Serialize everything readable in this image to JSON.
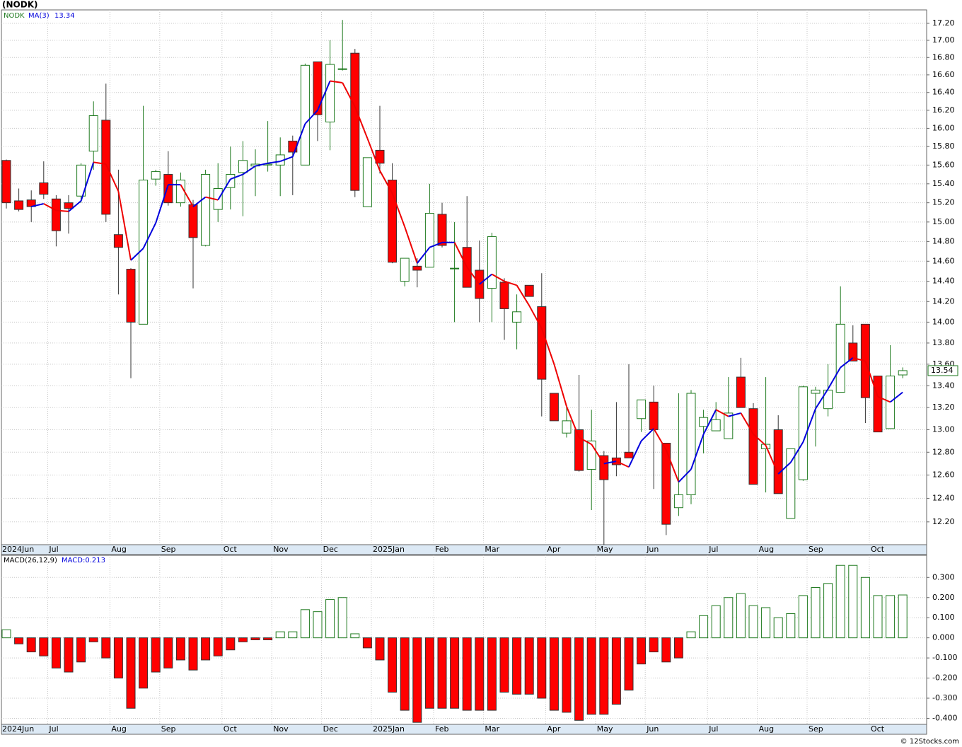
{
  "source": "© 12Stocks.com",
  "chart_data": [
    {
      "type": "candlestick",
      "title": "(NODK)",
      "log_scale": true,
      "grid": true,
      "categories": [
        "2024Jun",
        null,
        null,
        null,
        "Jul",
        null,
        null,
        null,
        null,
        "Aug",
        null,
        null,
        null,
        "Sep",
        null,
        null,
        null,
        null,
        "Oct",
        null,
        null,
        null,
        "Nov",
        null,
        null,
        null,
        "Dec",
        null,
        null,
        null,
        "2025Jan",
        null,
        null,
        null,
        null,
        "Feb",
        null,
        null,
        null,
        "Mar",
        null,
        null,
        null,
        null,
        "Apr",
        null,
        null,
        null,
        "May",
        null,
        null,
        null,
        "Jun",
        null,
        null,
        null,
        null,
        "Jul",
        null,
        null,
        null,
        "Aug",
        null,
        null,
        null,
        "Sep",
        null,
        null,
        null,
        null,
        "Oct",
        null,
        null
      ],
      "series": [
        {
          "name": "NODK",
          "color": "#1f7a1f",
          "down_color": "#ff0000",
          "open": [
            15.65,
            15.22,
            15.23,
            15.41,
            15.24,
            15.2,
            15.27,
            15.75,
            16.09,
            14.87,
            14.52,
            13.98,
            15.45,
            15.5,
            15.2,
            15.18,
            14.76,
            15.13,
            15.36,
            15.52,
            15.59,
            15.6,
            15.6,
            15.86,
            15.6,
            16.75,
            16.07,
            16.67,
            16.85,
            15.16,
            15.76,
            15.44,
            14.4,
            14.55,
            14.54,
            15.08,
            14.53,
            14.74,
            14.51,
            14.33,
            14.39,
            14.0,
            14.36,
            14.15,
            13.33,
            12.97,
            13.0,
            12.65,
            12.77,
            12.75,
            12.8,
            13.1,
            13.25,
            12.88,
            12.32,
            12.43,
            13.03,
            12.99,
            12.92,
            13.48,
            13.19,
            12.83,
            13.0,
            12.23,
            12.56,
            13.33,
            13.19,
            13.34,
            13.8,
            13.98,
            13.49,
            13.01,
            13.5
          ],
          "high": [
            15.66,
            15.35,
            15.33,
            15.64,
            15.28,
            15.28,
            15.62,
            16.3,
            16.5,
            15.55,
            14.53,
            16.25,
            15.55,
            15.75,
            15.52,
            15.23,
            15.55,
            15.62,
            15.8,
            15.86,
            15.77,
            16.08,
            15.9,
            15.92,
            16.73,
            16.75,
            17.0,
            17.24,
            16.9,
            15.68,
            16.25,
            15.62,
            14.63,
            14.63,
            15.4,
            15.2,
            15.0,
            15.27,
            14.81,
            14.89,
            14.43,
            14.27,
            14.36,
            14.48,
            13.33,
            13.2,
            13.5,
            13.18,
            12.81,
            13.25,
            13.6,
            13.27,
            13.4,
            12.88,
            13.33,
            13.36,
            13.18,
            13.25,
            13.48,
            13.66,
            13.24,
            13.48,
            13.13,
            12.83,
            13.4,
            13.39,
            13.6,
            14.35,
            13.97,
            13.98,
            13.49,
            13.78,
            13.57
          ],
          "low": [
            15.14,
            15.11,
            15.0,
            15.24,
            14.75,
            14.88,
            15.2,
            15.55,
            15.0,
            14.27,
            13.47,
            13.98,
            15.38,
            15.17,
            15.16,
            14.33,
            14.75,
            15.0,
            15.13,
            15.06,
            15.27,
            15.53,
            15.27,
            15.28,
            15.6,
            15.86,
            15.76,
            16.65,
            15.26,
            15.16,
            15.51,
            14.58,
            14.35,
            14.34,
            14.54,
            14.74,
            14.0,
            14.34,
            14.0,
            14.0,
            13.83,
            13.74,
            14.25,
            13.12,
            13.08,
            12.93,
            12.63,
            12.3,
            12.01,
            12.59,
            12.75,
            12.98,
            12.48,
            12.09,
            12.25,
            12.35,
            12.79,
            12.99,
            12.92,
            13.2,
            12.52,
            12.45,
            12.44,
            12.23,
            12.55,
            12.85,
            13.12,
            13.34,
            13.63,
            13.06,
            12.98,
            13.01,
            13.47
          ],
          "close": [
            15.2,
            15.13,
            15.16,
            15.29,
            14.91,
            15.14,
            15.6,
            16.14,
            15.08,
            14.74,
            14.0,
            15.44,
            15.53,
            15.2,
            15.44,
            14.84,
            15.5,
            15.35,
            15.5,
            15.65,
            15.61,
            15.61,
            15.71,
            15.74,
            16.71,
            16.15,
            16.72,
            16.67,
            15.33,
            15.68,
            15.62,
            14.59,
            14.63,
            14.51,
            15.09,
            14.76,
            14.53,
            14.34,
            14.23,
            14.85,
            14.13,
            14.1,
            14.25,
            13.46,
            13.08,
            13.08,
            12.64,
            12.9,
            12.56,
            12.69,
            12.75,
            13.27,
            13.0,
            12.18,
            12.43,
            13.33,
            13.11,
            13.09,
            13.15,
            13.2,
            12.52,
            12.87,
            12.44,
            12.83,
            13.39,
            13.36,
            13.36,
            13.98,
            13.63,
            13.29,
            12.98,
            13.49,
            13.54
          ]
        }
      ],
      "ma": {
        "name": "MA(3)",
        "color": "#0000dd",
        "down_color": "#ee0000",
        "values": [
          null,
          null,
          15.16,
          15.19,
          15.12,
          15.11,
          15.22,
          15.63,
          15.61,
          15.32,
          14.61,
          14.73,
          14.99,
          15.39,
          15.39,
          15.16,
          15.26,
          15.23,
          15.45,
          15.5,
          15.59,
          15.62,
          15.64,
          15.69,
          16.05,
          16.2,
          16.53,
          16.51,
          16.24,
          15.89,
          15.54,
          15.3,
          14.95,
          14.58,
          14.74,
          14.79,
          14.79,
          14.54,
          14.37,
          14.47,
          14.4,
          14.36,
          14.16,
          13.94,
          13.6,
          13.21,
          12.93,
          12.87,
          12.7,
          12.72,
          12.67,
          12.9,
          13.01,
          12.82,
          12.54,
          12.65,
          12.96,
          13.18,
          13.12,
          13.15,
          12.96,
          12.86,
          12.61,
          12.71,
          12.89,
          13.19,
          13.37,
          13.57,
          13.66,
          13.63,
          13.3,
          13.25,
          13.34
        ]
      },
      "ylim": [
        12.01,
        17.36
      ],
      "yticks": [
        {
          "value": 12.2,
          "label": "12.20"
        },
        {
          "value": 12.4,
          "label": "12.40"
        },
        {
          "value": 12.6,
          "label": "12.60"
        },
        {
          "value": 12.8,
          "label": "12.80"
        },
        {
          "value": 13.0,
          "label": "13.00"
        },
        {
          "value": 13.2,
          "label": "13.20"
        },
        {
          "value": 13.4,
          "label": "13.40"
        },
        {
          "value": 13.6,
          "label": "13.60"
        },
        {
          "value": 13.8,
          "label": "13.80"
        },
        {
          "value": 14.0,
          "label": "14.00"
        },
        {
          "value": 14.2,
          "label": "14.20"
        },
        {
          "value": 14.4,
          "label": "14.40"
        },
        {
          "value": 14.6,
          "label": "14.60"
        },
        {
          "value": 14.8,
          "label": "14.80"
        },
        {
          "value": 15.0,
          "label": "15.00"
        },
        {
          "value": 15.2,
          "label": "15.20"
        },
        {
          "value": 15.4,
          "label": "15.40"
        },
        {
          "value": 15.6,
          "label": "15.60"
        },
        {
          "value": 15.8,
          "label": "15.80"
        },
        {
          "value": 16.0,
          "label": "16.00"
        },
        {
          "value": 16.2,
          "label": "16.20"
        },
        {
          "value": 16.4,
          "label": "16.40"
        },
        {
          "value": 16.6,
          "label": "16.60"
        },
        {
          "value": 16.8,
          "label": "16.80"
        },
        {
          "value": 17.0,
          "label": "17.00"
        },
        {
          "value": 17.2,
          "label": "17.20"
        }
      ]
    },
    {
      "type": "bar",
      "title": "MACD(26,12,9)",
      "grid": true,
      "categories": [
        "2024Jun",
        null,
        null,
        null,
        "Jul",
        null,
        null,
        null,
        null,
        "Aug",
        null,
        null,
        null,
        "Sep",
        null,
        null,
        null,
        null,
        "Oct",
        null,
        null,
        null,
        "Nov",
        null,
        null,
        null,
        "Dec",
        null,
        null,
        null,
        "2025Jan",
        null,
        null,
        null,
        null,
        "Feb",
        null,
        null,
        null,
        "Mar",
        null,
        null,
        null,
        null,
        "Apr",
        null,
        null,
        null,
        "May",
        null,
        null,
        null,
        "Jun",
        null,
        null,
        null,
        null,
        "Jul",
        null,
        null,
        null,
        "Aug",
        null,
        null,
        null,
        "Sep",
        null,
        null,
        null,
        null,
        "Oct",
        null,
        null
      ],
      "series": [
        {
          "name": "MACD:0.213",
          "color": "#1f7a1f",
          "down_color": "#ff0000",
          "values": [
            0.04,
            -0.03,
            -0.07,
            -0.09,
            -0.15,
            -0.17,
            -0.12,
            -0.02,
            -0.1,
            -0.2,
            -0.35,
            -0.25,
            -0.17,
            -0.15,
            -0.11,
            -0.16,
            -0.11,
            -0.09,
            -0.06,
            -0.02,
            -0.01,
            -0.01,
            0.03,
            0.03,
            0.14,
            0.13,
            0.19,
            0.2,
            0.02,
            -0.05,
            -0.11,
            -0.27,
            -0.36,
            -0.42,
            -0.35,
            -0.35,
            -0.35,
            -0.36,
            -0.36,
            -0.36,
            -0.27,
            -0.28,
            -0.28,
            -0.3,
            -0.36,
            -0.37,
            -0.41,
            -0.38,
            -0.38,
            -0.33,
            -0.26,
            -0.13,
            -0.07,
            -0.12,
            -0.1,
            0.03,
            0.11,
            0.16,
            0.2,
            0.22,
            0.16,
            0.15,
            0.1,
            0.12,
            0.21,
            0.25,
            0.27,
            0.36,
            0.36,
            0.3,
            0.21,
            0.21,
            0.213
          ]
        }
      ],
      "ylim": [
        -0.43,
        0.41
      ],
      "yticks": [
        {
          "value": 0.3,
          "label": "0.300"
        },
        {
          "value": 0.2,
          "label": "0.200"
        },
        {
          "value": 0.1,
          "label": "0.100"
        },
        {
          "value": 0,
          "label": "0.000"
        },
        {
          "value": -0.1,
          "label": "-0.100"
        },
        {
          "value": -0.2,
          "label": "-0.200"
        },
        {
          "value": -0.3,
          "label": "-0.300"
        },
        {
          "value": -0.4,
          "label": "-0.400"
        }
      ]
    }
  ]
}
